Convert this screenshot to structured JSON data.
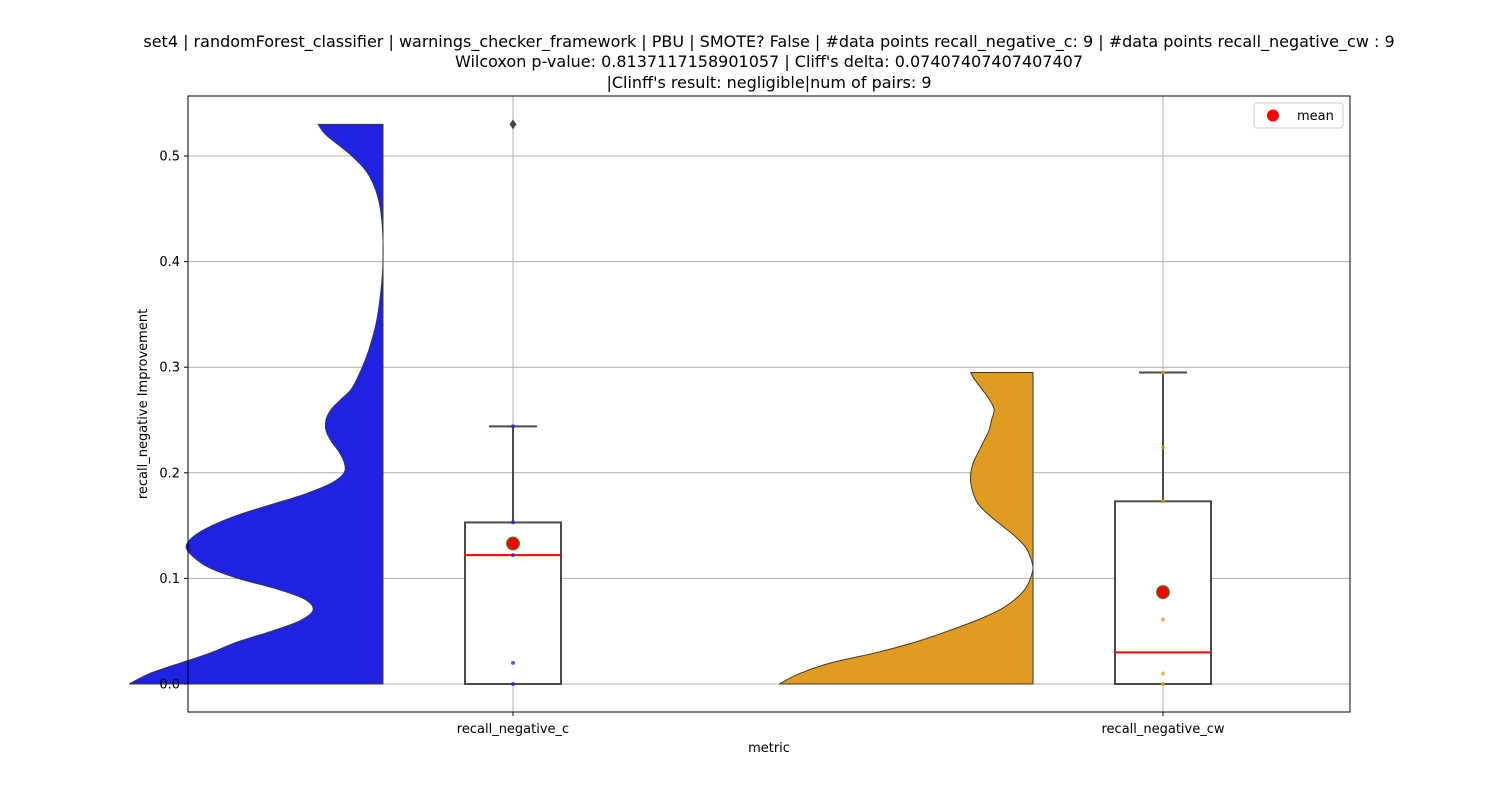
{
  "chart_data": {
    "type": "violin+box",
    "title_lines": [
      "set4 | randomForest_classifier | warnings_checker_framework | PBU | SMOTE? False | #data points recall_negative_c: 9 | #data points recall_negative_cw : 9",
      "Wilcoxon p-value: 0.8137117158901057 | Cliff's delta: 0.07407407407407407",
      "|Clinff's result: negligible|num of pairs: 9"
    ],
    "xlabel": "metric",
    "ylabel": "recall_negative Improvement",
    "ylim": [
      -0.026,
      0.557
    ],
    "y_ticks": [
      0.0,
      0.1,
      0.2,
      0.3,
      0.4,
      0.5
    ],
    "y_tick_labels": [
      "0.0",
      "0.1",
      "0.2",
      "0.3",
      "0.4",
      "0.5"
    ],
    "categories": [
      "recall_negative_c",
      "recall_negative_cw"
    ],
    "grid": true,
    "legend": {
      "placement": "top-right",
      "entries": [
        {
          "label": "mean",
          "color": "#ff0000"
        }
      ]
    },
    "colors": {
      "violin_c": "#1f22e0",
      "violin_cw": "#e09c21",
      "box_edge": "#4a4a4a",
      "median": "#ff0000",
      "mean_marker": "#ff0000",
      "mean_edge": "#2a9a2a",
      "grid": "#b0b0b0"
    },
    "series": [
      {
        "category": "recall_negative_c",
        "violin_color": "#1f22e0",
        "violin_profile": [
          [
            0.0,
            0.98
          ],
          [
            0.01,
            0.9
          ],
          [
            0.02,
            0.78
          ],
          [
            0.03,
            0.66
          ],
          [
            0.04,
            0.56
          ],
          [
            0.05,
            0.43
          ],
          [
            0.06,
            0.32
          ],
          [
            0.07,
            0.27
          ],
          [
            0.08,
            0.3
          ],
          [
            0.09,
            0.41
          ],
          [
            0.1,
            0.56
          ],
          [
            0.11,
            0.67
          ],
          [
            0.12,
            0.73
          ],
          [
            0.13,
            0.76
          ],
          [
            0.14,
            0.73
          ],
          [
            0.15,
            0.66
          ],
          [
            0.16,
            0.56
          ],
          [
            0.17,
            0.43
          ],
          [
            0.18,
            0.3
          ],
          [
            0.19,
            0.2
          ],
          [
            0.2,
            0.15
          ],
          [
            0.21,
            0.15
          ],
          [
            0.22,
            0.17
          ],
          [
            0.23,
            0.2
          ],
          [
            0.24,
            0.22
          ],
          [
            0.25,
            0.22
          ],
          [
            0.26,
            0.2
          ],
          [
            0.27,
            0.16
          ],
          [
            0.28,
            0.12
          ],
          [
            0.3,
            0.08
          ],
          [
            0.32,
            0.05
          ],
          [
            0.35,
            0.02
          ],
          [
            0.4,
            0.0
          ],
          [
            0.45,
            0.01
          ],
          [
            0.48,
            0.05
          ],
          [
            0.5,
            0.12
          ],
          [
            0.52,
            0.22
          ],
          [
            0.53,
            0.25
          ]
        ],
        "box": {
          "q1": 0.0,
          "median": 0.122,
          "q3": 0.153,
          "whisker_low": 0.0,
          "whisker_high": 0.244
        },
        "mean": 0.133,
        "outliers": [
          0.53
        ],
        "points": [
          0.0,
          0.02,
          0.122,
          0.153,
          0.244
        ]
      },
      {
        "category": "recall_negative_cw",
        "violin_color": "#e09c21",
        "violin_profile": [
          [
            0.0,
            0.98
          ],
          [
            0.01,
            0.9
          ],
          [
            0.02,
            0.78
          ],
          [
            0.03,
            0.6
          ],
          [
            0.04,
            0.45
          ],
          [
            0.05,
            0.33
          ],
          [
            0.06,
            0.22
          ],
          [
            0.07,
            0.13
          ],
          [
            0.08,
            0.07
          ],
          [
            0.09,
            0.03
          ],
          [
            0.1,
            0.01
          ],
          [
            0.11,
            0.0
          ],
          [
            0.12,
            0.01
          ],
          [
            0.13,
            0.03
          ],
          [
            0.14,
            0.07
          ],
          [
            0.15,
            0.12
          ],
          [
            0.16,
            0.17
          ],
          [
            0.17,
            0.21
          ],
          [
            0.18,
            0.23
          ],
          [
            0.19,
            0.24
          ],
          [
            0.2,
            0.24
          ],
          [
            0.21,
            0.23
          ],
          [
            0.22,
            0.21
          ],
          [
            0.23,
            0.19
          ],
          [
            0.24,
            0.17
          ],
          [
            0.25,
            0.16
          ],
          [
            0.26,
            0.15
          ],
          [
            0.27,
            0.17
          ],
          [
            0.28,
            0.2
          ],
          [
            0.29,
            0.23
          ],
          [
            0.295,
            0.24
          ]
        ],
        "box": {
          "q1": 0.0,
          "median": 0.03,
          "q3": 0.173,
          "whisker_low": 0.0,
          "whisker_high": 0.295
        },
        "mean": 0.087,
        "outliers": [],
        "points": [
          0.0,
          0.01,
          0.061,
          0.087,
          0.173,
          0.224,
          0.295
        ]
      }
    ]
  }
}
